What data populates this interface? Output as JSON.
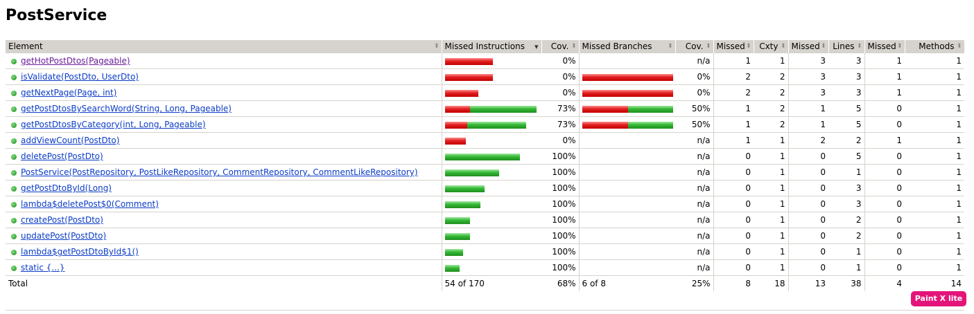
{
  "page": {
    "title": "PostService"
  },
  "columns": [
    "Element",
    "Missed Instructions",
    "Cov.",
    "Missed Branches",
    "Cov.",
    "Missed",
    "Cxty",
    "Missed",
    "Lines",
    "Missed",
    "Methods"
  ],
  "rows": [
    {
      "name": "getHotPostDtos(Pageable)",
      "visited": true,
      "instr_missed_pct": 100,
      "instr_bar": 0.52,
      "instr_cov": "0%",
      "branch_bar": 0,
      "branch_missed_pct": 0,
      "branch_cov": "n/a",
      "cx_missed": "1",
      "cxty": "1",
      "lines_missed": "3",
      "lines": "3",
      "m_missed": "1",
      "methods": "1"
    },
    {
      "name": "isValidate(PostDto, UserDto)",
      "visited": false,
      "instr_missed_pct": 100,
      "instr_bar": 0.52,
      "instr_cov": "0%",
      "branch_bar": 1.0,
      "branch_missed_pct": 100,
      "branch_cov": "0%",
      "cx_missed": "2",
      "cxty": "2",
      "lines_missed": "3",
      "lines": "3",
      "m_missed": "1",
      "methods": "1"
    },
    {
      "name": "getNextPage(Page, int)",
      "visited": false,
      "instr_missed_pct": 100,
      "instr_bar": 0.36,
      "instr_cov": "0%",
      "branch_bar": 1.0,
      "branch_missed_pct": 100,
      "branch_cov": "0%",
      "cx_missed": "2",
      "cxty": "2",
      "lines_missed": "3",
      "lines": "3",
      "m_missed": "1",
      "methods": "1"
    },
    {
      "name": "getPostDtosBySearchWord(String, Long, Pageable)",
      "visited": false,
      "instr_missed_pct": 27,
      "instr_bar": 1.0,
      "instr_cov": "73%",
      "branch_bar": 1.0,
      "branch_missed_pct": 50,
      "branch_cov": "50%",
      "cx_missed": "1",
      "cxty": "2",
      "lines_missed": "1",
      "lines": "5",
      "m_missed": "0",
      "methods": "1"
    },
    {
      "name": "getPostDtosByCategory(int, Long, Pageable)",
      "visited": false,
      "instr_missed_pct": 27,
      "instr_bar": 0.89,
      "instr_cov": "73%",
      "branch_bar": 1.0,
      "branch_missed_pct": 50,
      "branch_cov": "50%",
      "cx_missed": "1",
      "cxty": "2",
      "lines_missed": "1",
      "lines": "5",
      "m_missed": "0",
      "methods": "1"
    },
    {
      "name": "addViewCount(PostDto)",
      "visited": false,
      "instr_missed_pct": 100,
      "instr_bar": 0.23,
      "instr_cov": "0%",
      "branch_bar": 0,
      "branch_missed_pct": 0,
      "branch_cov": "n/a",
      "cx_missed": "1",
      "cxty": "1",
      "lines_missed": "2",
      "lines": "2",
      "m_missed": "1",
      "methods": "1"
    },
    {
      "name": "deletePost(PostDto)",
      "visited": false,
      "instr_missed_pct": 0,
      "instr_bar": 0.82,
      "instr_cov": "100%",
      "branch_bar": 0,
      "branch_missed_pct": 0,
      "branch_cov": "n/a",
      "cx_missed": "0",
      "cxty": "1",
      "lines_missed": "0",
      "lines": "5",
      "m_missed": "0",
      "methods": "1"
    },
    {
      "name": "PostService(PostRepository, PostLikeRepository, CommentRepository, CommentLikeRepository)",
      "visited": false,
      "instr_missed_pct": 0,
      "instr_bar": 0.59,
      "instr_cov": "100%",
      "branch_bar": 0,
      "branch_missed_pct": 0,
      "branch_cov": "n/a",
      "cx_missed": "0",
      "cxty": "1",
      "lines_missed": "0",
      "lines": "1",
      "m_missed": "0",
      "methods": "1"
    },
    {
      "name": "getPostDtoById(Long)",
      "visited": false,
      "instr_missed_pct": 0,
      "instr_bar": 0.43,
      "instr_cov": "100%",
      "branch_bar": 0,
      "branch_missed_pct": 0,
      "branch_cov": "n/a",
      "cx_missed": "0",
      "cxty": "1",
      "lines_missed": "0",
      "lines": "3",
      "m_missed": "0",
      "methods": "1"
    },
    {
      "name": "lambda$deletePost$0(Comment)",
      "visited": false,
      "instr_missed_pct": 0,
      "instr_bar": 0.39,
      "instr_cov": "100%",
      "branch_bar": 0,
      "branch_missed_pct": 0,
      "branch_cov": "n/a",
      "cx_missed": "0",
      "cxty": "1",
      "lines_missed": "0",
      "lines": "3",
      "m_missed": "0",
      "methods": "1"
    },
    {
      "name": "createPost(PostDto)",
      "visited": false,
      "instr_missed_pct": 0,
      "instr_bar": 0.27,
      "instr_cov": "100%",
      "branch_bar": 0,
      "branch_missed_pct": 0,
      "branch_cov": "n/a",
      "cx_missed": "0",
      "cxty": "1",
      "lines_missed": "0",
      "lines": "2",
      "m_missed": "0",
      "methods": "1"
    },
    {
      "name": "updatePost(PostDto)",
      "visited": false,
      "instr_missed_pct": 0,
      "instr_bar": 0.27,
      "instr_cov": "100%",
      "branch_bar": 0,
      "branch_missed_pct": 0,
      "branch_cov": "n/a",
      "cx_missed": "0",
      "cxty": "1",
      "lines_missed": "0",
      "lines": "2",
      "m_missed": "0",
      "methods": "1"
    },
    {
      "name": "lambda$getPostDtoById$1()",
      "visited": false,
      "instr_missed_pct": 0,
      "instr_bar": 0.2,
      "instr_cov": "100%",
      "branch_bar": 0,
      "branch_missed_pct": 0,
      "branch_cov": "n/a",
      "cx_missed": "0",
      "cxty": "1",
      "lines_missed": "0",
      "lines": "1",
      "m_missed": "0",
      "methods": "1"
    },
    {
      "name": "static {...}",
      "visited": false,
      "instr_missed_pct": 0,
      "instr_bar": 0.16,
      "instr_cov": "100%",
      "branch_bar": 0,
      "branch_missed_pct": 0,
      "branch_cov": "n/a",
      "cx_missed": "0",
      "cxty": "1",
      "lines_missed": "0",
      "lines": "1",
      "m_missed": "0",
      "methods": "1"
    }
  ],
  "total": {
    "label": "Total",
    "instr": "54 of 170",
    "instr_cov": "68%",
    "branch": "6 of 8",
    "branch_cov": "25%",
    "cx_missed": "8",
    "cxty": "18",
    "lines_missed": "13",
    "lines": "38",
    "m_missed": "4",
    "methods": "14"
  },
  "badge": {
    "label": "Paint X lite",
    "color": "#e4157a"
  },
  "colors": {
    "missed": "#e02020",
    "covered": "#33b733",
    "header": "#d6d3ce",
    "link": "#0b3cc7",
    "visited_link": "#6a1b9a"
  }
}
